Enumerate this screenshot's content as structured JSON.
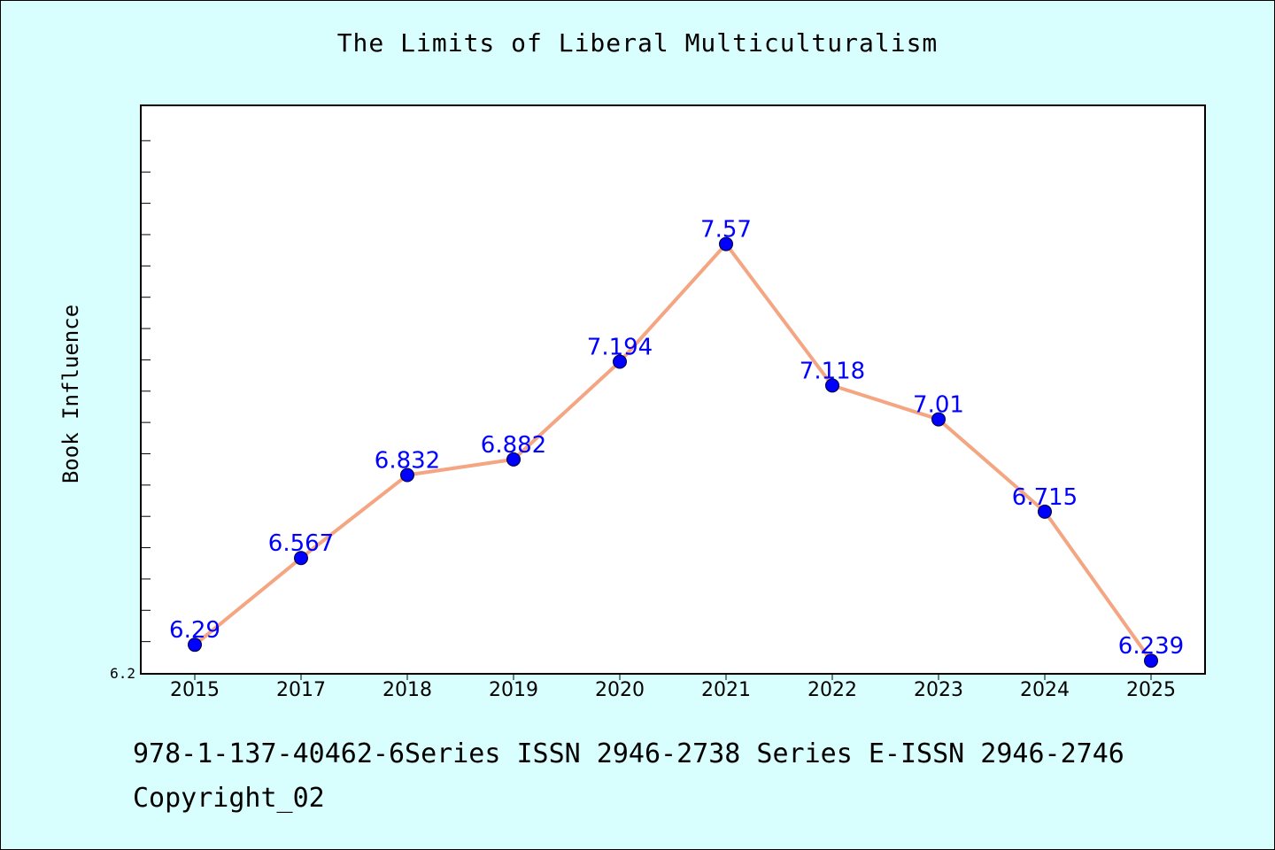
{
  "chart_data": {
    "type": "line",
    "title": "The Limits of Liberal Multiculturalism",
    "xlabel": "",
    "ylabel": "Book Influence",
    "categories": [
      "2015",
      "2017",
      "2018",
      "2019",
      "2020",
      "2021",
      "2022",
      "2023",
      "2024",
      "2025"
    ],
    "series": [
      {
        "values": [
          6.29,
          6.567,
          6.832,
          6.882,
          7.194,
          7.57,
          7.118,
          7.01,
          6.715,
          6.239
        ],
        "data_labels": [
          "6.29",
          "6.567",
          "6.832",
          "6.882",
          "7.194",
          "7.57",
          "7.118",
          "7.01",
          "6.715",
          "6.239"
        ],
        "line_color": "#f4a582",
        "marker_color": "#0000ff"
      }
    ],
    "ylim": [
      6.2,
      8.01
    ],
    "y_tick_labels": [
      "6.2"
    ],
    "grid": false,
    "legend": "none"
  },
  "footer": {
    "line1": "978-1-137-40462-6Series ISSN 2946-2738 Series E-ISSN 2946-2746",
    "line2": "Copyright_02"
  },
  "colors": {
    "background": "#d8fefe",
    "plot_background": "#ffffff",
    "line": "#f4a582",
    "marker": "#0000ff",
    "data_label": "#0000ff"
  }
}
